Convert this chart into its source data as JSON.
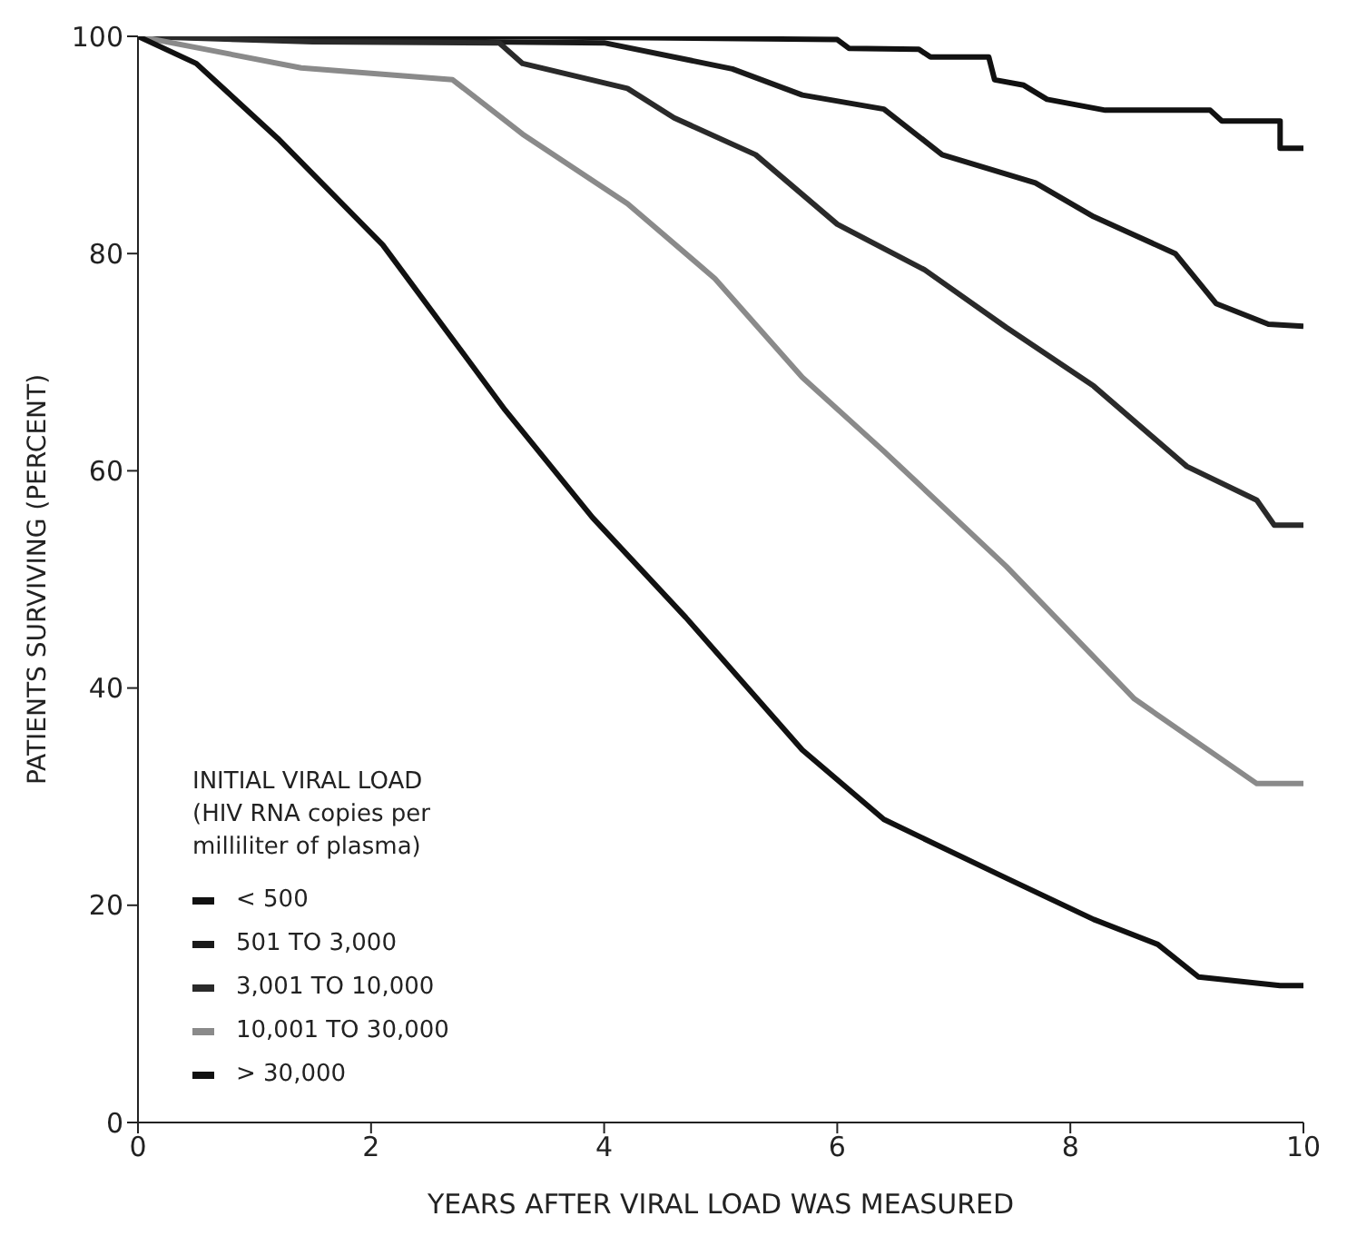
{
  "chart_data": {
    "type": "line",
    "xlabel": "YEARS AFTER VIRAL LOAD WAS MEASURED",
    "ylabel": "PATIENTS SURVIVING (PERCENT)",
    "legend_title": "INITIAL VIRAL LOAD\n(HIV RNA copies per\nmilliliter of plasma)",
    "legend": "bottom left",
    "marker": "none",
    "grid": false,
    "xlim": [
      0,
      10
    ],
    "xticks": [
      0,
      2,
      4,
      6,
      8,
      10
    ],
    "ylim": [
      0,
      100
    ],
    "yticks": [
      0,
      20,
      40,
      60,
      80,
      100
    ],
    "series": [
      {
        "name": "< 500",
        "color": "#111111",
        "x": [
          0,
          3,
          6,
          6.1,
          6.7,
          6.8,
          7.3,
          7.35,
          7.6,
          7.8,
          8.3,
          9.2,
          9.3,
          9.8,
          9.8,
          10
        ],
        "values": [
          100,
          100,
          99.7,
          98.9,
          98.8,
          98.1,
          98.1,
          96,
          95.5,
          94.2,
          93.2,
          93.2,
          92.2,
          92.2,
          89.7,
          89.7
        ]
      },
      {
        "name": "501 TO 3,000",
        "color": "#1a1a1a",
        "x": [
          0,
          2,
          4,
          5.1,
          5.7,
          6.4,
          6.9,
          7.7,
          8.2,
          8.9,
          9.25,
          9.7,
          10
        ],
        "values": [
          100,
          99.6,
          99.4,
          97,
          94.6,
          93.3,
          89.1,
          86.5,
          83.4,
          80,
          75.4,
          73.5,
          73.3
        ]
      },
      {
        "name": "3,001 TO 10,000",
        "color": "#2a2a2a",
        "x": [
          0,
          1.5,
          3.1,
          3.3,
          4.2,
          4.6,
          5.3,
          6,
          6.75,
          7.45,
          8.2,
          9,
          9.6,
          9.75,
          10
        ],
        "values": [
          100,
          99.5,
          99.4,
          97.5,
          95.2,
          92.5,
          89.1,
          82.7,
          78.5,
          73.2,
          67.8,
          60.4,
          57.3,
          55,
          55
        ]
      },
      {
        "name": "10,001 TO 30,000",
        "color": "#8a8a8a",
        "x": [
          0,
          1.4,
          2.7,
          3.3,
          4.2,
          4.95,
          5.7,
          6.4,
          7.45,
          8.55,
          9.6,
          10
        ],
        "values": [
          100,
          97.1,
          96,
          91,
          84.6,
          77.7,
          68.6,
          61.8,
          51.2,
          39,
          31.2,
          31.2
        ]
      },
      {
        "name": "> 30,000",
        "color": "#111111",
        "x": [
          0,
          0.5,
          1.2,
          2.1,
          3.15,
          3.9,
          4.7,
          5.7,
          6.4,
          7.45,
          8.2,
          8.75,
          9.1,
          9.8,
          10
        ],
        "values": [
          100,
          97.5,
          90.6,
          80.8,
          65.6,
          55.7,
          46.5,
          34.3,
          27.9,
          22.5,
          18.7,
          16.4,
          13.4,
          12.6,
          12.6
        ]
      }
    ]
  }
}
